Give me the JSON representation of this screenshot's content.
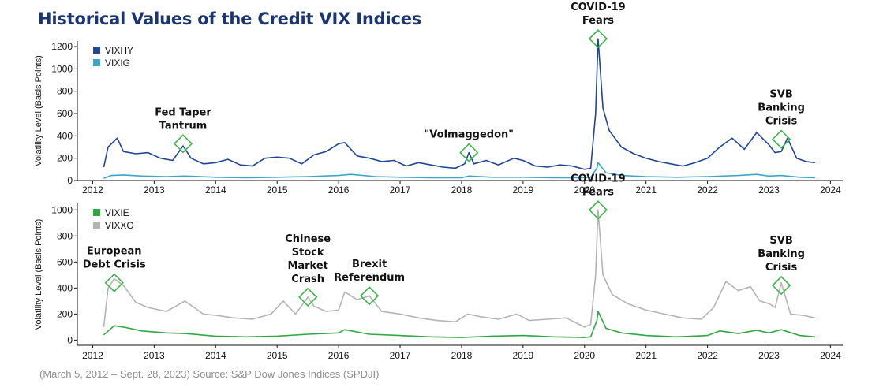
{
  "title": "Historical Values of the Credit VIX Indices",
  "source": "(March 5, 2012 – Sept. 28, 2023) Source: S&P Dow Jones Indices (SPDJI)",
  "colors": {
    "title": "#1a3572",
    "VIXHY": "#1f4594",
    "VIXIG": "#3aa6cc",
    "VIXIE": "#2ea842",
    "VIXXO": "#b4b4b4",
    "marker": "#3cb44b"
  },
  "chart_data": [
    {
      "type": "line",
      "ylabel": "Volatility Level (Basis Points)",
      "xlim": [
        2011.75,
        2024.2
      ],
      "ylim": [
        0,
        1250
      ],
      "yticks": [
        0,
        200,
        400,
        600,
        800,
        1000,
        1200
      ],
      "xticks": [
        2012,
        2013,
        2014,
        2015,
        2016,
        2017,
        2018,
        2019,
        2020,
        2021,
        2022,
        2023,
        2024
      ],
      "legend_position": "top-left",
      "series": [
        {
          "name": "VIXHY",
          "color": "#1f4594",
          "x": [
            2012.18,
            2012.25,
            2012.4,
            2012.5,
            2012.7,
            2012.9,
            2013.1,
            2013.3,
            2013.47,
            2013.6,
            2013.8,
            2014.0,
            2014.2,
            2014.4,
            2014.6,
            2014.8,
            2015.0,
            2015.2,
            2015.4,
            2015.6,
            2015.8,
            2016.0,
            2016.1,
            2016.3,
            2016.5,
            2016.7,
            2016.9,
            2017.1,
            2017.3,
            2017.5,
            2017.7,
            2017.9,
            2018.05,
            2018.12,
            2018.2,
            2018.4,
            2018.6,
            2018.85,
            2019.0,
            2019.2,
            2019.4,
            2019.6,
            2019.8,
            2020.0,
            2020.1,
            2020.18,
            2020.22,
            2020.3,
            2020.4,
            2020.6,
            2020.8,
            2021.0,
            2021.2,
            2021.4,
            2021.6,
            2021.8,
            2022.0,
            2022.2,
            2022.4,
            2022.6,
            2022.8,
            2023.0,
            2023.1,
            2023.2,
            2023.3,
            2023.45,
            2023.6,
            2023.75
          ],
          "values": [
            120,
            300,
            380,
            260,
            240,
            250,
            200,
            180,
            310,
            200,
            150,
            160,
            190,
            140,
            130,
            200,
            210,
            200,
            150,
            230,
            260,
            330,
            340,
            220,
            200,
            170,
            180,
            130,
            160,
            140,
            120,
            110,
            150,
            250,
            150,
            180,
            140,
            200,
            180,
            130,
            120,
            140,
            130,
            100,
            110,
            600,
            1270,
            650,
            450,
            300,
            240,
            200,
            170,
            150,
            130,
            160,
            200,
            300,
            380,
            280,
            430,
            320,
            250,
            260,
            380,
            200,
            170,
            160
          ]
        },
        {
          "name": "VIXIG",
          "color": "#3aa6cc",
          "x": [
            2012.18,
            2012.3,
            2012.5,
            2012.8,
            2013.2,
            2013.5,
            2014.0,
            2014.5,
            2015.0,
            2015.5,
            2016.0,
            2016.2,
            2016.6,
            2017.0,
            2017.5,
            2018.0,
            2018.12,
            2018.5,
            2019.0,
            2019.5,
            2020.0,
            2020.1,
            2020.2,
            2020.22,
            2020.35,
            2020.6,
            2021.0,
            2021.5,
            2022.0,
            2022.5,
            2022.8,
            2023.0,
            2023.2,
            2023.5,
            2023.75
          ],
          "values": [
            20,
            45,
            50,
            40,
            35,
            40,
            30,
            25,
            30,
            35,
            45,
            55,
            35,
            30,
            25,
            25,
            40,
            30,
            30,
            25,
            25,
            30,
            110,
            160,
            70,
            45,
            35,
            30,
            35,
            45,
            55,
            40,
            45,
            30,
            25
          ]
        }
      ],
      "annotations": [
        {
          "text": "Fed Taper Tantrum",
          "line1": "Fed Taper",
          "line2": "Tantrum",
          "x": 2013.47,
          "y": 330
        },
        {
          "text": "\"Volmaggedon\"",
          "line1": "\"Volmaggedon\"",
          "line2": "",
          "x": 2018.12,
          "y": 250
        },
        {
          "text": "COVID-19 Fears",
          "line1": "COVID-19",
          "line2": "Fears",
          "x": 2020.22,
          "y": 1270
        },
        {
          "text": "SVB Banking Crisis",
          "line1": "SVB",
          "line2": "Banking",
          "line3": "Crisis",
          "x": 2023.2,
          "y": 370
        }
      ]
    },
    {
      "type": "line",
      "ylabel": "Volatility Level (Basis Points)",
      "xlim": [
        2011.75,
        2024.2
      ],
      "ylim": [
        -40,
        1050
      ],
      "yticks": [
        0,
        200,
        400,
        600,
        800,
        1000
      ],
      "xticks": [
        2012,
        2013,
        2014,
        2015,
        2016,
        2017,
        2018,
        2019,
        2020,
        2021,
        2022,
        2023,
        2024
      ],
      "legend_position": "top-left",
      "series": [
        {
          "name": "VIXIE",
          "color": "#2ea842",
          "x": [
            2012.18,
            2012.35,
            2012.5,
            2012.8,
            2013.2,
            2013.5,
            2014.0,
            2014.5,
            2015.0,
            2015.5,
            2016.0,
            2016.1,
            2016.5,
            2017.0,
            2017.5,
            2018.0,
            2018.5,
            2019.0,
            2019.5,
            2020.0,
            2020.1,
            2020.2,
            2020.22,
            2020.35,
            2020.6,
            2021.0,
            2021.5,
            2022.0,
            2022.2,
            2022.5,
            2022.8,
            2023.0,
            2023.2,
            2023.5,
            2023.75
          ],
          "values": [
            40,
            110,
            100,
            70,
            55,
            50,
            30,
            25,
            30,
            45,
            55,
            80,
            45,
            35,
            25,
            20,
            30,
            35,
            25,
            20,
            25,
            150,
            220,
            90,
            55,
            35,
            25,
            35,
            70,
            50,
            75,
            55,
            80,
            35,
            25
          ]
        },
        {
          "name": "VIXXO",
          "color": "#b4b4b4",
          "x": [
            2012.18,
            2012.25,
            2012.35,
            2012.5,
            2012.7,
            2012.9,
            2013.2,
            2013.5,
            2013.8,
            2014.0,
            2014.3,
            2014.6,
            2014.9,
            2015.1,
            2015.3,
            2015.5,
            2015.6,
            2015.8,
            2016.0,
            2016.1,
            2016.3,
            2016.5,
            2016.7,
            2017.0,
            2017.3,
            2017.6,
            2017.9,
            2018.1,
            2018.3,
            2018.6,
            2018.9,
            2019.1,
            2019.4,
            2019.7,
            2020.0,
            2020.1,
            2020.18,
            2020.22,
            2020.3,
            2020.45,
            2020.7,
            2021.0,
            2021.3,
            2021.6,
            2021.9,
            2022.1,
            2022.3,
            2022.5,
            2022.7,
            2022.85,
            2023.0,
            2023.1,
            2023.2,
            2023.35,
            2023.55,
            2023.75
          ],
          "values": [
            100,
            400,
            470,
            420,
            290,
            250,
            220,
            300,
            200,
            190,
            170,
            160,
            200,
            300,
            200,
            330,
            260,
            220,
            230,
            370,
            310,
            340,
            220,
            200,
            170,
            150,
            140,
            200,
            180,
            160,
            200,
            150,
            160,
            170,
            100,
            120,
            500,
            1000,
            500,
            350,
            280,
            230,
            200,
            170,
            160,
            250,
            450,
            380,
            410,
            300,
            280,
            250,
            440,
            200,
            190,
            170
          ]
        }
      ],
      "annotations": [
        {
          "text": "European Debt Crisis",
          "line1": "European",
          "line2": "Debt Crisis",
          "x": 2012.35,
          "y": 440
        },
        {
          "text": "Chinese Stock Market Crash",
          "line1": "Chinese",
          "line2": "Stock",
          "line3": "Market",
          "line4": "Crash",
          "x": 2015.5,
          "y": 330
        },
        {
          "text": "Brexit Referendum",
          "line1": "Brexit",
          "line2": "Referendum",
          "x": 2016.5,
          "y": 340
        },
        {
          "text": "COVID-19 Fears",
          "line1": "COVID-19",
          "line2": "Fears",
          "x": 2020.22,
          "y": 1000
        },
        {
          "text": "SVB Banking Crisis",
          "line1": "SVB",
          "line2": "Banking",
          "line3": "Crisis",
          "x": 2023.2,
          "y": 420
        }
      ]
    }
  ]
}
